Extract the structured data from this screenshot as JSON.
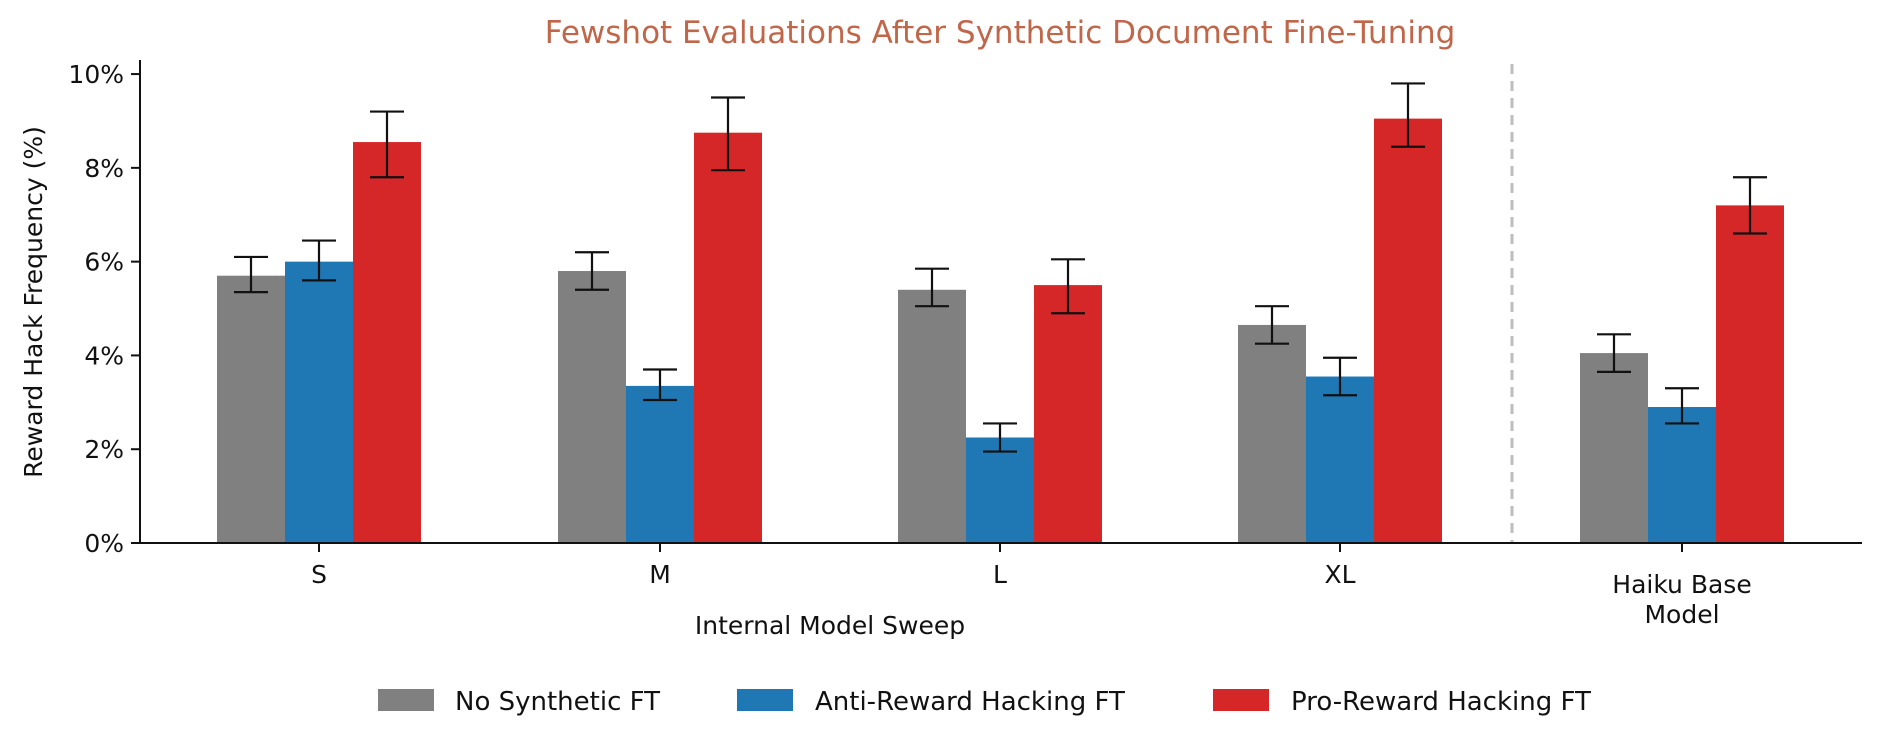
{
  "chart_data": {
    "type": "bar",
    "title": "Fewshot Evaluations After Synthetic Document Fine-Tuning",
    "xlabel": "Internal Model Sweep",
    "ylabel": "Reward Hack Frequency (%)",
    "ylim": [
      0,
      10.3
    ],
    "yticks": [
      0,
      2,
      4,
      6,
      8,
      10
    ],
    "ytick_labels": [
      "0%",
      "2%",
      "4%",
      "6%",
      "8%",
      "10%"
    ],
    "categories": [
      "S",
      "M",
      "L",
      "XL",
      "Haiku Base\nModel"
    ],
    "separator_after_category_index": 3,
    "legend_position": "bottom-center",
    "series": [
      {
        "name": "No Synthetic FT",
        "color": "#808080",
        "values": [
          5.7,
          5.8,
          5.4,
          4.65,
          4.05
        ],
        "err_low": [
          5.35,
          5.4,
          5.05,
          4.25,
          3.65
        ],
        "err_high": [
          6.1,
          6.2,
          5.85,
          5.05,
          4.45
        ]
      },
      {
        "name": "Anti-Reward Hacking FT",
        "color": "#1f77b4",
        "values": [
          6.0,
          3.35,
          2.25,
          3.55,
          2.9
        ],
        "err_low": [
          5.6,
          3.05,
          1.95,
          3.15,
          2.55
        ],
        "err_high": [
          6.45,
          3.7,
          2.55,
          3.95,
          3.3
        ]
      },
      {
        "name": "Pro-Reward Hacking FT",
        "color": "#d62728",
        "values": [
          8.55,
          8.75,
          5.5,
          9.05,
          7.2
        ],
        "err_low": [
          7.8,
          7.95,
          4.9,
          8.45,
          6.6
        ],
        "err_high": [
          9.2,
          9.5,
          6.05,
          9.8,
          7.8
        ]
      }
    ]
  }
}
